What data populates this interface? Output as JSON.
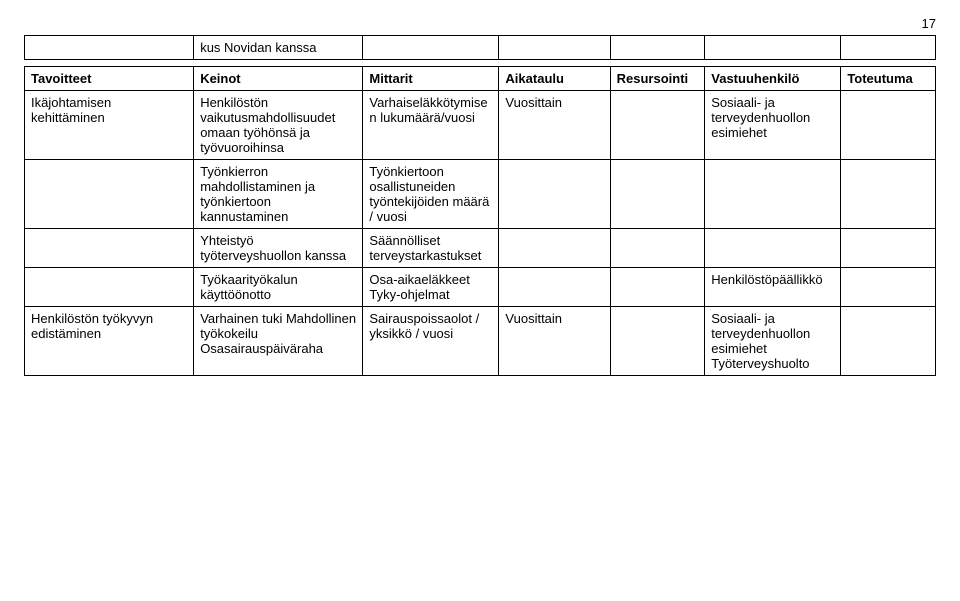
{
  "page_number": "17",
  "table1": {
    "rows": [
      [
        "",
        "kus Novidan kanssa",
        "",
        "",
        "",
        "",
        ""
      ]
    ]
  },
  "table2": {
    "headers": [
      "Tavoitteet",
      "Keinot",
      "Mittarit",
      "Aikataulu",
      "Resursointi",
      "Vastuuhenkilö",
      "Toteutuma"
    ],
    "rows": [
      [
        "Ikäjohtamisen kehittäminen",
        "Henkilöstön vaikutusmahdollisuudet omaan työhönsä ja työvuoroihinsa",
        "Varhaiseläkkötymisen lukumäärä/vuosi",
        "Vuosittain",
        "",
        "Sosiaali- ja terveydenhuollon esimiehet",
        ""
      ],
      [
        "",
        "Työnkierron mahdollistaminen ja työnkiertoon kannustaminen",
        "Työnkiertoon osallistuneiden työntekijöiden määrä / vuosi",
        "",
        "",
        "",
        ""
      ],
      [
        "",
        "Yhteistyö työterveyshuollon kanssa",
        "Säännölliset terveystarkastukset",
        "",
        "",
        "",
        ""
      ],
      [
        "",
        "Työkaarityökalun käyttöönotto",
        "Osa-aikaeläkkeet Tyky-ohjelmat",
        "",
        "",
        "Henkilöstöpäällikkö",
        ""
      ],
      [
        "Henkilöstön työkyvyn edistäminen",
        "Varhainen tuki Mahdollinen työkokeilu Osasairauspäiväraha",
        "Sairauspoissaolot / yksikkö / vuosi",
        "Vuosittain",
        "",
        "Sosiaali- ja terveydenhuollon esimiehet Työterveyshuolto",
        ""
      ]
    ]
  },
  "columns": [
    "col0",
    "col1",
    "col2",
    "col3",
    "col4",
    "col5",
    "col6"
  ]
}
